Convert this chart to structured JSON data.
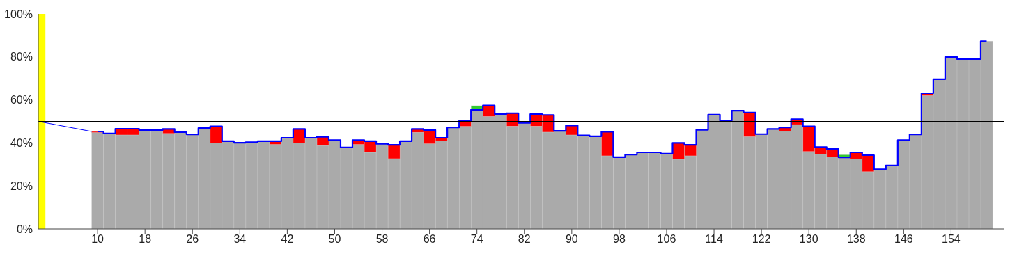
{
  "chart_data": {
    "type": "bar",
    "stacked": true,
    "x": [
      10,
      12,
      14,
      16,
      18,
      20,
      22,
      24,
      26,
      28,
      30,
      32,
      34,
      36,
      38,
      40,
      42,
      44,
      46,
      48,
      50,
      52,
      54,
      56,
      58,
      60,
      62,
      64,
      66,
      68,
      70,
      72,
      74,
      76,
      78,
      80,
      82,
      84,
      86,
      88,
      90,
      92,
      94,
      96,
      98,
      100,
      102,
      104,
      106,
      108,
      110,
      112,
      114,
      116,
      118,
      120,
      122,
      124,
      126,
      128,
      130,
      132,
      134,
      136,
      138,
      140,
      142,
      144,
      146,
      148,
      150,
      152,
      154,
      156,
      158,
      160
    ],
    "series": [
      {
        "color": "#aaaaaa",
        "values": [
          44.8,
          44.4,
          43.7,
          43.7,
          46.0,
          46.0,
          44.4,
          45.0,
          44.0,
          46.9,
          39.9,
          40.8,
          40.1,
          40.3,
          40.8,
          39.3,
          42.4,
          40.0,
          42.4,
          38.8,
          41.3,
          37.9,
          39.3,
          35.6,
          39.6,
          32.7,
          40.8,
          44.9,
          39.6,
          40.9,
          47.2,
          47.7,
          55.4,
          52.3,
          53.4,
          47.8,
          49.3,
          47.8,
          45.0,
          45.6,
          43.7,
          43.5,
          43.1,
          34.0,
          33.4,
          34.6,
          35.6,
          35.6,
          35.0,
          32.4,
          34.0,
          46.1,
          53.1,
          50.4,
          55.0,
          42.9,
          44.1,
          46.5,
          45.4,
          48.5,
          36.0,
          34.7,
          33.5,
          33.3,
          32.6,
          26.6,
          27.7,
          29.5,
          41.3,
          44.0,
          62.0,
          69.6,
          80.0,
          79.0,
          79.0,
          87.3
        ]
      },
      {
        "color": "#ff0000",
        "values": [
          0.5,
          0,
          2.9,
          2.9,
          0,
          0,
          2.1,
          0,
          0,
          0,
          7.8,
          0,
          0,
          0,
          0,
          1.5,
          0,
          6.5,
          0,
          4.0,
          0,
          0,
          2.0,
          5.2,
          0,
          6.4,
          0,
          1.6,
          6.4,
          1.5,
          0,
          2.6,
          0,
          5.1,
          0,
          6.0,
          0,
          5.6,
          8.0,
          0,
          4.4,
          0,
          0,
          11.2,
          0,
          0,
          0,
          0,
          0,
          7.6,
          5.1,
          0,
          0,
          0,
          0,
          11.2,
          0,
          0,
          1.8,
          2.5,
          11.7,
          3.4,
          3.7,
          0,
          3.0,
          7.7,
          0,
          0,
          0,
          0,
          1.1,
          0,
          0,
          0,
          0,
          0
        ]
      },
      {
        "color": "#33cc33",
        "values": [
          0,
          0,
          0,
          0,
          0,
          0,
          0,
          0,
          0,
          0,
          0,
          0,
          0,
          0,
          0,
          0,
          0,
          0,
          0,
          0,
          0,
          0,
          0,
          0,
          0,
          0,
          0,
          0,
          0,
          0,
          0,
          0,
          1.9,
          0,
          0,
          0,
          0,
          0,
          0,
          0,
          0,
          0,
          0,
          0,
          0,
          0,
          0,
          0,
          0,
          0,
          0,
          0,
          0,
          0,
          0,
          0,
          0,
          0,
          0,
          0,
          0,
          0,
          0,
          1.2,
          0,
          0,
          0,
          0,
          0,
          0,
          0,
          0,
          0,
          0,
          0,
          0
        ]
      },
      {
        "type": "step",
        "color": "#0000ff",
        "values": [
          45.3,
          44.4,
          46.6,
          46.6,
          46.0,
          46.0,
          46.5,
          45.0,
          44.0,
          46.9,
          47.7,
          40.8,
          40.1,
          40.3,
          40.8,
          40.8,
          42.4,
          46.5,
          42.4,
          42.8,
          41.3,
          37.9,
          41.3,
          40.8,
          39.6,
          39.1,
          40.8,
          46.5,
          46.0,
          42.4,
          47.2,
          50.3,
          55.4,
          57.4,
          53.4,
          53.8,
          49.3,
          53.4,
          53.0,
          45.6,
          48.1,
          43.5,
          43.1,
          45.2,
          33.4,
          34.6,
          35.6,
          35.6,
          35.0,
          40.0,
          39.1,
          46.1,
          53.1,
          50.4,
          55.0,
          54.1,
          44.1,
          46.5,
          47.2,
          51.0,
          47.7,
          38.1,
          37.2,
          33.3,
          35.6,
          34.3,
          27.7,
          29.5,
          41.3,
          44.0,
          63.1,
          69.6,
          80.0,
          79.0,
          79.0,
          87.3
        ]
      },
      {
        "type": "line",
        "color": "#0000ff",
        "x": [
          0,
          9
        ],
        "values": [
          50,
          45.3
        ]
      }
    ],
    "xlim": [
      0,
      163
    ],
    "xticks": [
      10,
      18,
      26,
      34,
      42,
      50,
      58,
      66,
      74,
      82,
      90,
      98,
      106,
      114,
      122,
      130,
      138,
      146,
      154
    ],
    "ylim": [
      0,
      100
    ],
    "yticks": [
      {
        "value": 0,
        "label": "0%"
      },
      {
        "value": 20,
        "label": "20%"
      },
      {
        "value": 40,
        "label": "40%"
      },
      {
        "value": 60,
        "label": "60%"
      },
      {
        "value": 80,
        "label": "80%"
      },
      {
        "value": 100,
        "label": "100%"
      }
    ],
    "ref_lines": [
      {
        "axis": "y",
        "value": 50,
        "color": "#000000"
      }
    ],
    "bands": [
      {
        "axis": "x",
        "from": 0,
        "to": 1.2,
        "color": "#ffff00"
      }
    ],
    "grid": false,
    "legend": false,
    "marker": "none"
  }
}
